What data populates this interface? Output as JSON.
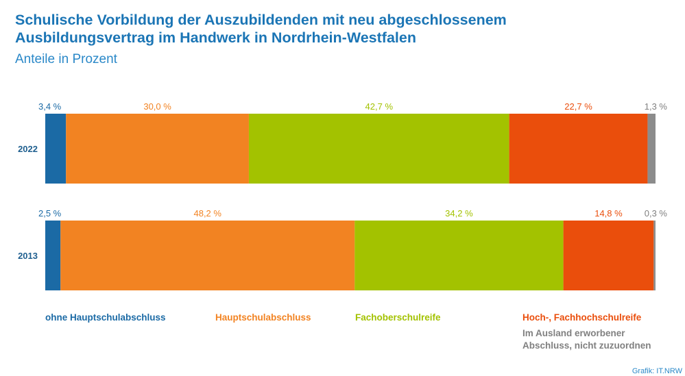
{
  "title_line1": "Schulische Vorbildung der Auszubildenden mit neu abgeschlossenem",
  "title_line2": "Ausbildungsvertrag im Handwerk in Nordrhein-Westfalen",
  "subtitle": "Anteile in Prozent",
  "source": "Grafik: IT.NRW",
  "chart_data": {
    "type": "bar",
    "stacked": true,
    "orientation": "horizontal",
    "title": "Schulische Vorbildung der Auszubildenden mit neu abgeschlossenem Ausbildungsvertrag im Handwerk in Nordrhein-Westfalen",
    "subtitle": "Anteile in Prozent",
    "categories": [
      "2022",
      "2013"
    ],
    "xlim": [
      0,
      100
    ],
    "series": [
      {
        "name": "ohne Hauptschulabschluss",
        "color": "#1b6aa5",
        "values": [
          3.4,
          2.5
        ],
        "labels": [
          "3,4 %",
          "2,5 %"
        ]
      },
      {
        "name": "Hauptschulabschluss",
        "color": "#f28322",
        "values": [
          30.0,
          48.2
        ],
        "labels": [
          "30,0 %",
          "48,2 %"
        ]
      },
      {
        "name": "Fachoberschulreife",
        "color": "#a3c200",
        "values": [
          42.7,
          34.2
        ],
        "labels": [
          "42,7 %",
          "34,2 %"
        ]
      },
      {
        "name": "Hoch-, Fachhochschulreife",
        "color": "#ea4e0c",
        "values": [
          22.7,
          14.8
        ],
        "labels": [
          "22,7 %",
          "14,8 %"
        ]
      },
      {
        "name": "Im Ausland erworbener Abschluss, nicht zuzuordnen",
        "color": "#8c8c8c",
        "values": [
          1.3,
          0.3
        ],
        "labels": [
          "1,3 %",
          "0,3 %"
        ]
      }
    ],
    "legend": {
      "placement": "bottom",
      "entries": [
        "ohne Hauptschulabschluss",
        "Hauptschulabschluss",
        "Fachoberschulreife",
        "Hoch-, Fachhochschulreife",
        "Im Ausland erworbener Abschluss, nicht zuzuordnen"
      ]
    },
    "grid": false
  }
}
